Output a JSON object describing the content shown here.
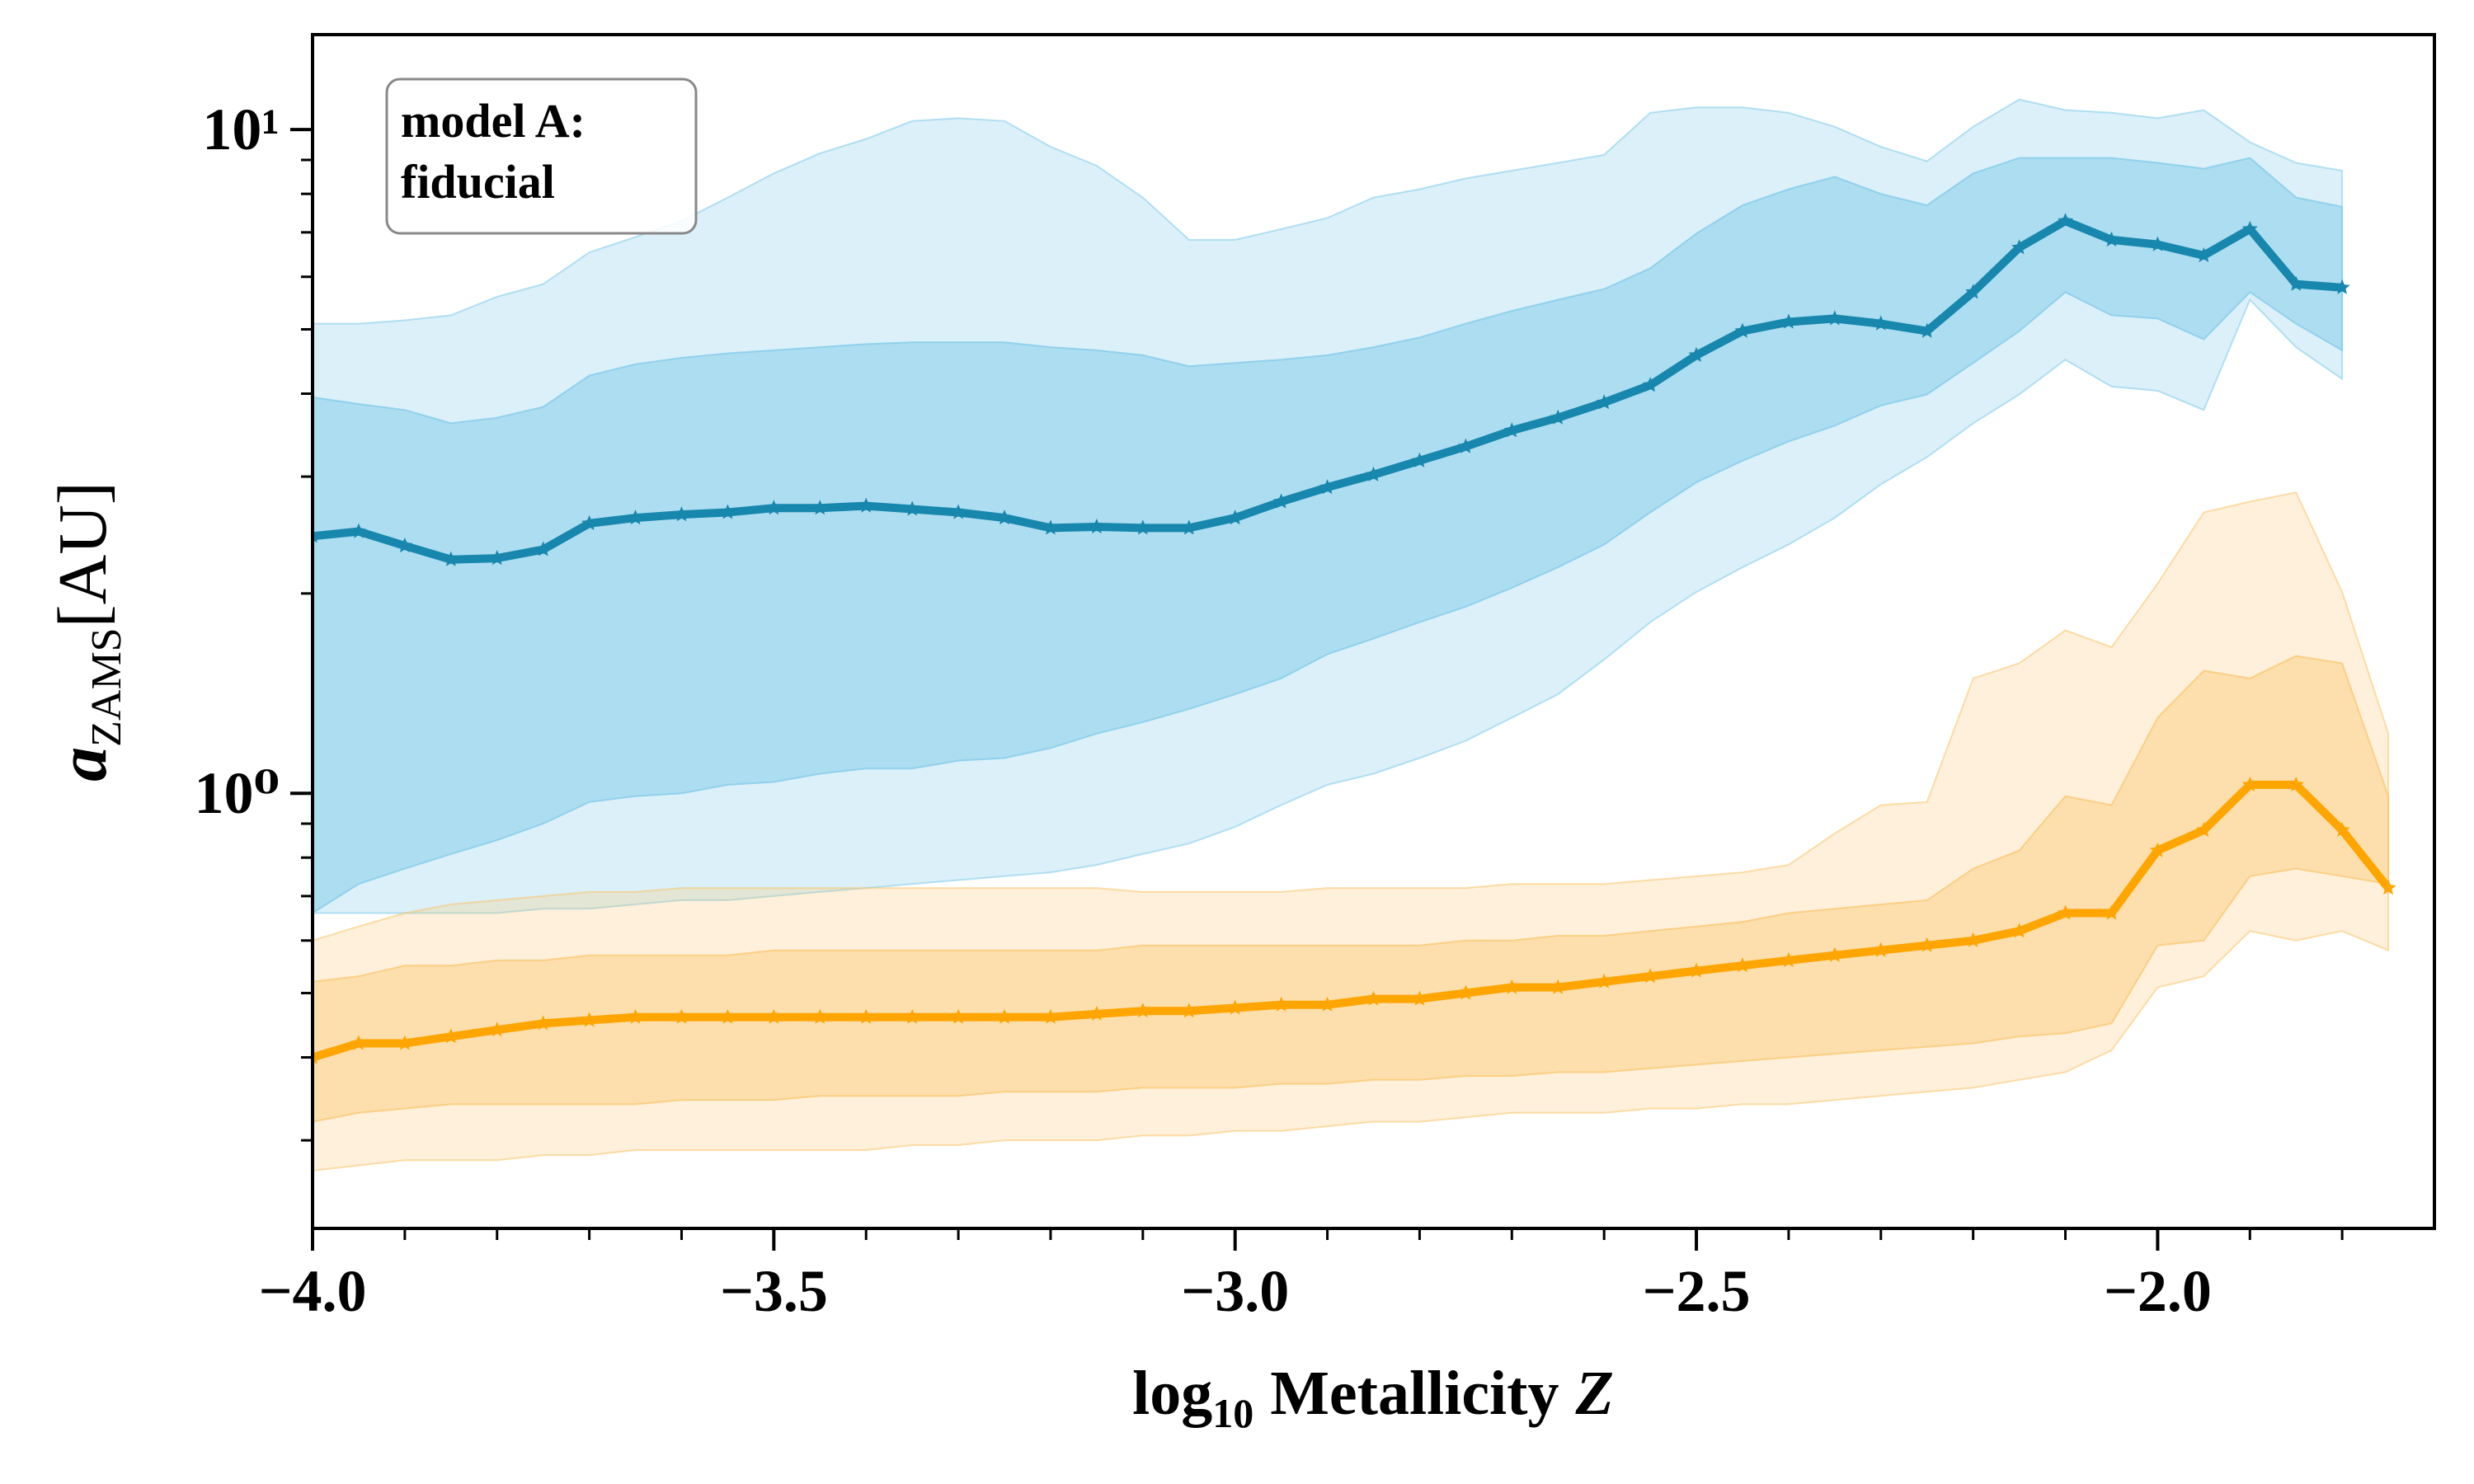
{
  "chart_data": {
    "type": "line",
    "annotation": [
      "model A:",
      "fiducial"
    ],
    "xlabel": {
      "text": "log",
      "sub": "10",
      "main": "Metallicity",
      "var": "Z"
    },
    "ylabel": {
      "var": "a",
      "sub": "ZAMS",
      "unit": "[AU]"
    },
    "log_y": true,
    "xlim": [
      -4,
      -1.7
    ],
    "ylim": [
      0.221,
      13.9
    ],
    "xticks": [
      {
        "value": -4,
        "label": "−4.0"
      },
      {
        "value": -3.5,
        "label": "−3.5"
      },
      {
        "value": -3,
        "label": "−3.0"
      },
      {
        "value": -2.5,
        "label": "−2.5"
      },
      {
        "value": -2,
        "label": "−2.0"
      }
    ],
    "xminorticks": [
      -3.9,
      -3.8,
      -3.7,
      -3.6,
      -3.4,
      -3.3,
      -3.2,
      -3.1,
      -2.9,
      -2.8,
      -2.7,
      -2.6,
      -2.4,
      -2.3,
      -2.2,
      -2.1,
      -1.9,
      -1.8
    ],
    "yticks": [
      {
        "value": 1,
        "label": "10⁰"
      },
      {
        "value": 10,
        "label": "10¹"
      }
    ],
    "yminorticks": [
      0.3,
      0.4,
      0.5,
      0.6,
      0.7,
      0.8,
      0.9,
      2,
      3,
      4,
      5,
      6,
      7,
      8,
      9
    ],
    "x": [
      -4,
      -3.95,
      -3.9,
      -3.85,
      -3.8,
      -3.75,
      -3.7,
      -3.65,
      -3.6,
      -3.55,
      -3.5,
      -3.45,
      -3.4,
      -3.35,
      -3.3,
      -3.25,
      -3.2,
      -3.15,
      -3.1,
      -3.05,
      -3,
      -2.95,
      -2.9,
      -2.85,
      -2.8,
      -2.75,
      -2.7,
      -2.65,
      -2.6,
      -2.55,
      -2.5,
      -2.45,
      -2.4,
      -2.35,
      -2.3,
      -2.25,
      -2.2,
      -2.15,
      -2.1,
      -2.05,
      -2,
      -1.95,
      -1.9,
      -1.85,
      -1.8,
      -1.75
    ],
    "series": [
      {
        "color": "#1787ad",
        "values": [
          2.44,
          2.48,
          2.36,
          2.25,
          2.26,
          2.33,
          2.55,
          2.6,
          2.63,
          2.65,
          2.69,
          2.69,
          2.71,
          2.68,
          2.65,
          2.6,
          2.51,
          2.52,
          2.51,
          2.51,
          2.6,
          2.75,
          2.89,
          3.02,
          3.17,
          3.33,
          3.52,
          3.68,
          3.88,
          4.12,
          4.57,
          4.97,
          5.13,
          5.19,
          5.1,
          4.97,
          5.69,
          6.64,
          7.28,
          6.82,
          6.71,
          6.46,
          7.08,
          5.85,
          5.78,
          null
        ],
        "bands": [
          {
            "color": "#87ceeb",
            "opacity": 0.3,
            "upper": [
              5.1,
              5.1,
              5.16,
              5.25,
              5.6,
              5.85,
              6.53,
              6.89,
              7.28,
              7.9,
              8.59,
              9.21,
              9.68,
              10.3,
              10.4,
              10.3,
              9.42,
              8.82,
              7.9,
              6.82,
              6.82,
              7.08,
              7.36,
              7.9,
              8.13,
              8.44,
              8.67,
              8.91,
              9.16,
              10.6,
              10.8,
              10.8,
              10.6,
              10.1,
              9.42,
              8.96,
              10.1,
              11.1,
              10.7,
              10.6,
              10.4,
              10.7,
              9.57,
              8.91,
              8.67,
              null
            ],
            "lower": [
              0.66,
              0.66,
              0.66,
              0.66,
              0.66,
              0.67,
              0.67,
              0.68,
              0.69,
              0.69,
              0.7,
              0.71,
              0.72,
              0.73,
              0.74,
              0.75,
              0.76,
              0.78,
              0.81,
              0.84,
              0.89,
              0.96,
              1.03,
              1.07,
              1.13,
              1.2,
              1.3,
              1.41,
              1.59,
              1.81,
              2.01,
              2.19,
              2.37,
              2.6,
              2.92,
              3.21,
              3.61,
              3.99,
              4.5,
              4.1,
              4.04,
              3.78,
              5.54,
              4.7,
              4.21,
              null
            ]
          },
          {
            "color": "#87ceeb",
            "opacity": 0.55,
            "upper": [
              3.95,
              3.86,
              3.78,
              3.61,
              3.68,
              3.82,
              4.26,
              4.43,
              4.53,
              4.6,
              4.65,
              4.7,
              4.75,
              4.78,
              4.78,
              4.78,
              4.7,
              4.65,
              4.57,
              4.4,
              4.45,
              4.5,
              4.57,
              4.7,
              4.86,
              5.1,
              5.33,
              5.54,
              5.75,
              6.18,
              6.97,
              7.69,
              8.13,
              8.49,
              8.0,
              7.69,
              8.59,
              9.06,
              9.06,
              9.06,
              8.91,
              8.73,
              9.06,
              7.9,
              7.65,
              null
            ],
            "lower": [
              0.66,
              0.73,
              0.77,
              0.81,
              0.85,
              0.9,
              0.97,
              0.99,
              1.0,
              1.03,
              1.04,
              1.07,
              1.09,
              1.09,
              1.12,
              1.13,
              1.17,
              1.23,
              1.28,
              1.34,
              1.41,
              1.49,
              1.62,
              1.71,
              1.81,
              1.91,
              2.04,
              2.19,
              2.37,
              2.65,
              2.94,
              3.17,
              3.39,
              3.58,
              3.84,
              3.99,
              4.45,
              4.97,
              5.69,
              5.25,
              5.19,
              4.83,
              5.69,
              5.1,
              4.65,
              null
            ]
          }
        ]
      },
      {
        "color": "#ffa500",
        "values": [
          0.4,
          0.42,
          0.42,
          0.43,
          0.44,
          0.45,
          0.455,
          0.46,
          0.46,
          0.46,
          0.46,
          0.46,
          0.46,
          0.46,
          0.46,
          0.46,
          0.46,
          0.465,
          0.47,
          0.47,
          0.475,
          0.48,
          0.48,
          0.49,
          0.49,
          0.5,
          0.51,
          0.51,
          0.52,
          0.53,
          0.54,
          0.55,
          0.56,
          0.57,
          0.58,
          0.59,
          0.6,
          0.62,
          0.66,
          0.66,
          0.82,
          0.88,
          1.03,
          1.03,
          0.88,
          0.72
        ],
        "bands": [
          {
            "color": "#fbc56a",
            "opacity": 0.25,
            "upper": [
              0.6,
              0.63,
              0.66,
              0.68,
              0.69,
              0.7,
              0.71,
              0.71,
              0.72,
              0.72,
              0.72,
              0.72,
              0.72,
              0.72,
              0.72,
              0.72,
              0.72,
              0.72,
              0.71,
              0.71,
              0.71,
              0.71,
              0.72,
              0.72,
              0.72,
              0.72,
              0.73,
              0.73,
              0.73,
              0.74,
              0.75,
              0.76,
              0.78,
              0.87,
              0.96,
              0.97,
              1.49,
              1.57,
              1.76,
              1.66,
              2.07,
              2.65,
              2.75,
              2.84,
              2.01,
              1.23
            ],
            "lower": [
              0.27,
              0.275,
              0.28,
              0.28,
              0.28,
              0.285,
              0.285,
              0.29,
              0.29,
              0.29,
              0.29,
              0.29,
              0.29,
              0.295,
              0.295,
              0.3,
              0.3,
              0.3,
              0.305,
              0.305,
              0.31,
              0.31,
              0.315,
              0.32,
              0.32,
              0.325,
              0.33,
              0.33,
              0.33,
              0.335,
              0.335,
              0.34,
              0.34,
              0.345,
              0.35,
              0.355,
              0.36,
              0.37,
              0.38,
              0.41,
              0.51,
              0.53,
              0.62,
              0.6,
              0.62,
              0.58
            ]
          },
          {
            "color": "#fbc56a",
            "opacity": 0.4,
            "upper": [
              0.52,
              0.53,
              0.55,
              0.55,
              0.56,
              0.56,
              0.57,
              0.57,
              0.57,
              0.57,
              0.58,
              0.58,
              0.58,
              0.58,
              0.58,
              0.58,
              0.58,
              0.58,
              0.59,
              0.59,
              0.59,
              0.59,
              0.59,
              0.59,
              0.59,
              0.6,
              0.6,
              0.61,
              0.61,
              0.62,
              0.63,
              0.64,
              0.66,
              0.67,
              0.68,
              0.69,
              0.77,
              0.82,
              0.99,
              0.96,
              1.3,
              1.53,
              1.49,
              1.61,
              1.57,
              0.99
            ],
            "lower": [
              0.32,
              0.33,
              0.335,
              0.34,
              0.34,
              0.34,
              0.34,
              0.34,
              0.345,
              0.345,
              0.345,
              0.35,
              0.35,
              0.35,
              0.35,
              0.355,
              0.355,
              0.355,
              0.36,
              0.36,
              0.36,
              0.365,
              0.365,
              0.37,
              0.37,
              0.375,
              0.375,
              0.38,
              0.38,
              0.385,
              0.39,
              0.395,
              0.4,
              0.405,
              0.41,
              0.415,
              0.42,
              0.43,
              0.435,
              0.45,
              0.59,
              0.6,
              0.75,
              0.77,
              0.75,
              0.73
            ]
          }
        ]
      }
    ]
  }
}
